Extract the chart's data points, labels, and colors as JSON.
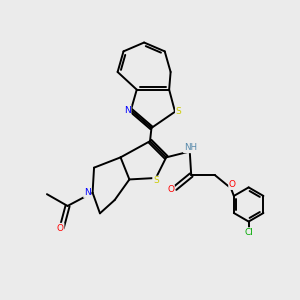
{
  "background_color": "#ebebeb",
  "fig_size": [
    3.0,
    3.0
  ],
  "dpi": 100,
  "atom_colors": {
    "N": "#0000ff",
    "S": "#cccc00",
    "O": "#ff0000",
    "Cl": "#00aa00",
    "C": "#000000",
    "H": "#5588aa"
  },
  "bond_color": "#000000",
  "bond_width": 1.4
}
